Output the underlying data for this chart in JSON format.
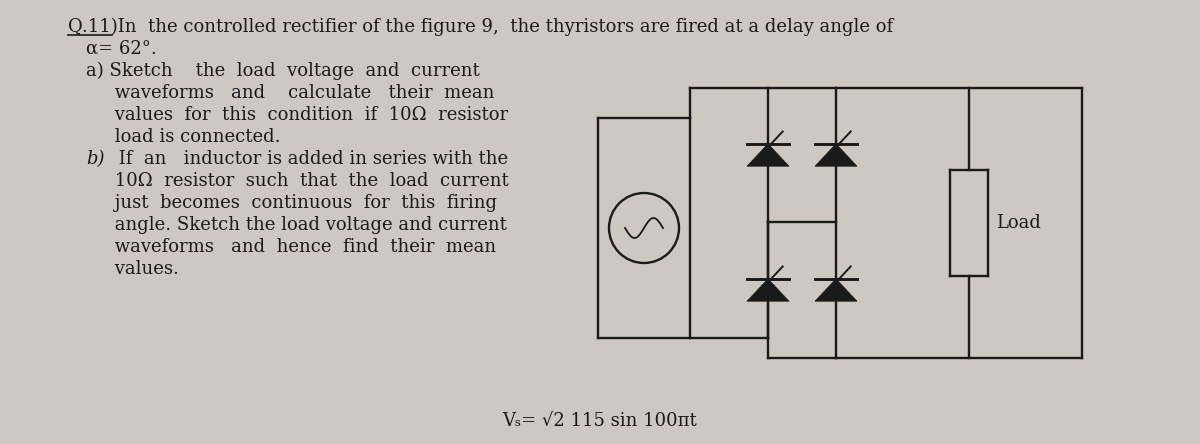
{
  "bg_color": "#cdc8c2",
  "text_color": "#1a1a1a",
  "bottom_formula": "Vₛ= √2 115 sin 100πt",
  "load_label": "Load",
  "font_size_main": 13.0,
  "title_q": "Q.11)",
  "title_rest": " In  the controlled rectifier of the figure 9,  the thyristors are fired at a delay angle of",
  "line2": "α= 62°.",
  "line3a": "a) Sketch    the  load  voltage  and  current",
  "line3b": "     waveforms   and    calculate   their  mean",
  "line3c": "     values  for  this  condition  if  10Ω  resistor",
  "line3d": "     load is connected.",
  "line4_b": "b)",
  "line4a": " If  an   inductor is added in series with the",
  "line4b": "     10Ω  resistor  such  that  the  load  current",
  "line4c": "     just  becomes  continuous  for  this  firing",
  "line4d": "     angle. Sketch the load voltage and current",
  "line4e": "     waveforms   and  hence  find  their  mean",
  "line4f": "     values."
}
